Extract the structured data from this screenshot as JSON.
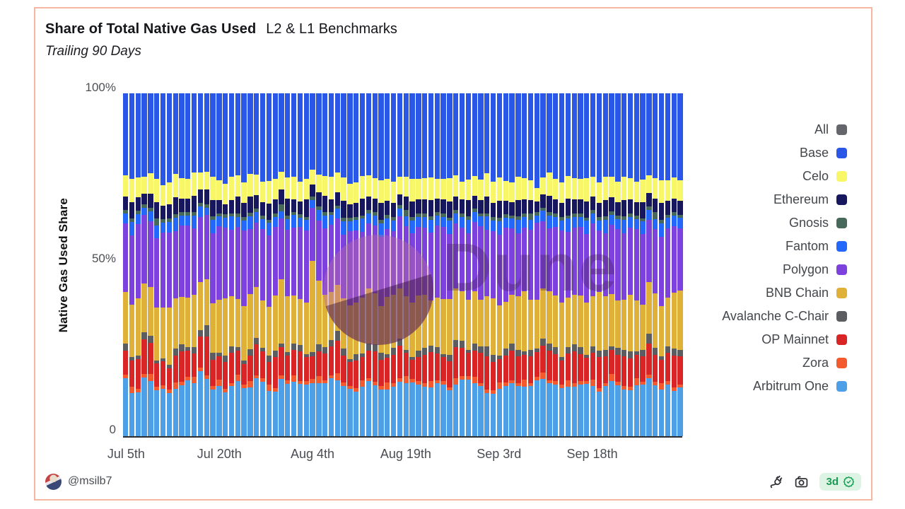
{
  "header": {
    "title_bold": "Share of Total Native Gas Used",
    "title_rest": "L2 & L1 Benchmarks",
    "subtitle": "Trailing 90 Days"
  },
  "watermark": {
    "text": "Dune"
  },
  "legend": {
    "items": [
      {
        "label": "All",
        "color": "#64666b"
      },
      {
        "label": "Base",
        "color": "#2b57e8"
      },
      {
        "label": "Celo",
        "color": "#f8f767"
      },
      {
        "label": "Ethereum",
        "color": "#17175f"
      },
      {
        "label": "Gnosis",
        "color": "#47695a"
      },
      {
        "label": "Fantom",
        "color": "#2368fa"
      },
      {
        "label": "Polygon",
        "color": "#7d42dd"
      },
      {
        "label": "BNB Chain",
        "color": "#e0b138"
      },
      {
        "label": "Avalanche C-Chair",
        "color": "#5b5d60"
      },
      {
        "label": "OP Mainnet",
        "color": "#d92525"
      },
      {
        "label": "Zora",
        "color": "#f35b2e"
      },
      {
        "label": "Arbitrum One",
        "color": "#4da0e8"
      }
    ]
  },
  "chart_data": {
    "type": "bar",
    "stacked": true,
    "normalized_to_100_percent": true,
    "title": "Share of Total Native Gas Used — L2 & L1 Benchmarks",
    "subtitle": "Trailing 90 Days",
    "ylabel": "Native Gas Used Share",
    "xlabel": "",
    "ylim": [
      0,
      100
    ],
    "grid": false,
    "legend_position": "right",
    "y_ticks": [
      "100%",
      "50%",
      "0"
    ],
    "num_bars": 90,
    "x_tick_positions": [
      0,
      15,
      30,
      45,
      60,
      75
    ],
    "x_tick_labels": [
      "Jul 5th",
      "Jul 20th",
      "Aug 4th",
      "Aug 19th",
      "Sep 3rd",
      "Sep 18th"
    ],
    "stack_order": "bottom to top as listed in series[]; values are approximate daily % shares",
    "series": [
      {
        "name": "Arbitrum One",
        "color": "#4da0e8",
        "values": [
          17,
          13,
          13,
          17,
          16,
          14,
          14,
          12,
          14,
          15,
          17,
          16,
          19,
          16,
          14,
          15,
          13,
          15,
          16,
          14,
          15,
          17,
          16,
          14,
          13,
          16,
          15,
          17,
          16,
          15,
          14,
          15,
          16,
          18,
          17,
          15,
          14,
          13,
          15,
          16,
          15,
          14,
          13,
          14,
          15,
          16,
          17,
          15,
          14,
          15,
          16,
          15,
          14,
          15,
          16,
          17,
          16,
          15,
          13,
          12,
          14,
          15,
          16,
          15,
          14,
          15,
          16,
          17,
          16,
          15,
          14,
          15,
          14,
          15,
          16,
          15,
          13,
          15,
          16,
          15,
          14,
          13,
          15,
          16,
          17,
          15,
          14,
          15,
          13,
          14
        ]
      },
      {
        "name": "Zora",
        "color": "#f35b2e",
        "values": [
          1,
          2,
          1,
          1,
          2,
          1,
          1,
          1,
          2,
          1,
          1,
          2,
          1,
          1,
          1,
          2,
          1,
          1,
          2,
          1,
          2,
          1,
          1,
          2,
          1,
          1,
          1,
          2,
          1,
          1,
          1,
          2,
          1,
          1,
          2,
          1,
          1,
          1,
          2,
          1,
          1,
          1,
          2,
          1,
          1,
          2,
          1,
          1,
          1,
          2,
          1,
          1,
          1,
          2,
          1,
          1,
          2,
          1,
          1,
          1,
          2,
          1,
          1,
          1,
          2,
          1,
          1,
          2,
          1,
          1,
          1,
          2,
          1,
          1,
          1,
          2,
          1,
          1,
          2,
          1,
          1,
          1,
          2,
          1,
          1,
          1,
          2,
          1,
          1,
          1
        ]
      },
      {
        "name": "OP Mainnet",
        "color": "#d92525",
        "values": [
          7,
          8,
          9,
          10,
          9,
          7,
          7,
          6,
          8,
          9,
          8,
          7,
          9,
          11,
          8,
          7,
          8,
          9,
          7,
          6,
          8,
          9,
          8,
          7,
          9,
          8,
          7,
          8,
          9,
          7,
          6,
          7,
          8,
          9,
          10,
          8,
          7,
          8,
          7,
          8,
          9,
          8,
          7,
          8,
          9,
          7,
          6,
          7,
          8,
          9,
          8,
          7,
          8,
          9,
          8,
          7,
          8,
          9,
          10,
          8,
          7,
          8,
          9,
          8,
          7,
          8,
          7,
          8,
          9,
          8,
          7,
          8,
          9,
          8,
          7,
          8,
          9,
          8,
          7,
          8,
          9,
          8,
          7,
          8,
          9,
          8,
          7,
          8,
          9,
          8
        ]
      },
      {
        "name": "Avalanche C-Chair",
        "color": "#5b5d60",
        "values": [
          2,
          1,
          1,
          2,
          2,
          1,
          1,
          1,
          2,
          2,
          1,
          2,
          2,
          3,
          2,
          1,
          2,
          2,
          1,
          1,
          2,
          2,
          1,
          2,
          2,
          1,
          1,
          2,
          2,
          1,
          1,
          2,
          2,
          2,
          3,
          2,
          1,
          2,
          1,
          2,
          2,
          2,
          1,
          2,
          2,
          1,
          1,
          2,
          2,
          2,
          2,
          1,
          2,
          2,
          2,
          1,
          2,
          2,
          3,
          2,
          1,
          2,
          2,
          2,
          1,
          2,
          1,
          2,
          2,
          2,
          1,
          2,
          2,
          2,
          1,
          2,
          2,
          2,
          1,
          2,
          2,
          2,
          1,
          2,
          3,
          2,
          1,
          2,
          2,
          2
        ]
      },
      {
        "name": "BNB Chain",
        "color": "#e0b138",
        "values": [
          15,
          16,
          17,
          14,
          14,
          16,
          15,
          16,
          15,
          14,
          15,
          16,
          14,
          13,
          15,
          16,
          17,
          15,
          14,
          16,
          17,
          15,
          14,
          15,
          16,
          18,
          16,
          15,
          14,
          15,
          24,
          18,
          16,
          15,
          14,
          15,
          16,
          15,
          17,
          16,
          15,
          14,
          16,
          15,
          14,
          16,
          17,
          16,
          15,
          14,
          15,
          16,
          17,
          15,
          14,
          15,
          16,
          14,
          15,
          16,
          15,
          14,
          15,
          16,
          17,
          15,
          14,
          15,
          16,
          15,
          16,
          15,
          14,
          15,
          16,
          15,
          17,
          16,
          15,
          14,
          15,
          16,
          15,
          14,
          15,
          16,
          15,
          14,
          16,
          17
        ]
      },
      {
        "name": "Polygon",
        "color": "#7d42dd",
        "values": [
          20,
          21,
          22,
          20,
          19,
          21,
          22,
          21,
          20,
          21,
          22,
          20,
          19,
          18,
          21,
          22,
          21,
          20,
          21,
          22,
          20,
          19,
          21,
          22,
          20,
          17,
          19,
          21,
          22,
          21,
          14,
          17,
          20,
          21,
          20,
          19,
          22,
          21,
          20,
          19,
          20,
          21,
          19,
          18,
          20,
          21,
          22,
          20,
          19,
          21,
          22,
          21,
          20,
          19,
          18,
          20,
          21,
          22,
          20,
          19,
          21,
          22,
          20,
          19,
          18,
          21,
          22,
          20,
          19,
          20,
          21,
          20,
          19,
          20,
          21,
          22,
          18,
          19,
          20,
          21,
          20,
          19,
          21,
          22,
          18,
          19,
          21,
          20,
          19,
          18
        ]
      },
      {
        "name": "Fantom",
        "color": "#2368fa",
        "values": [
          3,
          4,
          3,
          2,
          3,
          4,
          3,
          3,
          4,
          3,
          3,
          4,
          3,
          2,
          4,
          3,
          3,
          4,
          3,
          3,
          4,
          3,
          3,
          4,
          3,
          2,
          3,
          4,
          3,
          3,
          2,
          3,
          4,
          3,
          3,
          4,
          3,
          3,
          4,
          3,
          3,
          4,
          3,
          3,
          2,
          3,
          4,
          3,
          3,
          4,
          3,
          3,
          4,
          3,
          3,
          4,
          3,
          3,
          4,
          3,
          4,
          3,
          3,
          4,
          3,
          3,
          2,
          3,
          4,
          3,
          3,
          4,
          3,
          3,
          4,
          3,
          3,
          4,
          3,
          3,
          4,
          3,
          3,
          4,
          3,
          3,
          4,
          3,
          3,
          3
        ]
      },
      {
        "name": "Gnosis",
        "color": "#47695a",
        "values": [
          1,
          1,
          1,
          1,
          1,
          2,
          1,
          1,
          1,
          1,
          1,
          1,
          1,
          1,
          1,
          1,
          1,
          1,
          1,
          1,
          1,
          1,
          1,
          1,
          1,
          2,
          1,
          1,
          1,
          1,
          1,
          1,
          1,
          1,
          1,
          1,
          1,
          1,
          1,
          1,
          1,
          1,
          1,
          1,
          1,
          2,
          1,
          1,
          1,
          1,
          1,
          1,
          1,
          1,
          1,
          1,
          1,
          1,
          1,
          1,
          1,
          1,
          1,
          1,
          1,
          2,
          1,
          1,
          1,
          1,
          1,
          1,
          1,
          1,
          1,
          1,
          1,
          1,
          1,
          1,
          1,
          1,
          1,
          1,
          1,
          2,
          1,
          1,
          1,
          1
        ]
      },
      {
        "name": "Ethereum",
        "color": "#17175f",
        "values": [
          4,
          5,
          4,
          3,
          4,
          5,
          4,
          4,
          5,
          4,
          4,
          5,
          4,
          4,
          5,
          4,
          3,
          4,
          5,
          4,
          5,
          4,
          4,
          5,
          4,
          4,
          5,
          4,
          4,
          5,
          3,
          4,
          5,
          4,
          4,
          5,
          4,
          4,
          5,
          4,
          4,
          5,
          4,
          4,
          3,
          4,
          5,
          4,
          4,
          5,
          4,
          4,
          5,
          4,
          4,
          5,
          4,
          4,
          5,
          4,
          5,
          4,
          4,
          5,
          4,
          4,
          3,
          4,
          5,
          4,
          4,
          5,
          4,
          4,
          5,
          4,
          4,
          5,
          4,
          4,
          5,
          4,
          4,
          5,
          4,
          4,
          5,
          4,
          4,
          4
        ]
      },
      {
        "name": "Celo",
        "color": "#f8f767",
        "values": [
          6,
          7,
          6,
          5,
          6,
          7,
          6,
          6,
          7,
          6,
          6,
          7,
          5,
          5,
          7,
          6,
          6,
          7,
          6,
          6,
          7,
          6,
          6,
          7,
          6,
          5,
          6,
          7,
          6,
          6,
          4,
          5,
          6,
          7,
          6,
          7,
          6,
          6,
          7,
          6,
          6,
          7,
          6,
          6,
          5,
          6,
          7,
          6,
          6,
          7,
          6,
          6,
          7,
          6,
          5,
          6,
          6,
          6,
          7,
          6,
          7,
          6,
          6,
          7,
          6,
          6,
          4,
          5,
          7,
          6,
          6,
          7,
          6,
          6,
          7,
          6,
          6,
          7,
          6,
          6,
          7,
          6,
          6,
          7,
          5,
          6,
          7,
          6,
          6,
          6
        ]
      },
      {
        "name": "Base",
        "color": "#2b57e8",
        "values": [
          24,
          26,
          25,
          24,
          23,
          26,
          27,
          25,
          24,
          25,
          26,
          24,
          23,
          22,
          25,
          26,
          27,
          25,
          24,
          26,
          25,
          24,
          26,
          27,
          25,
          22,
          24,
          26,
          27,
          25,
          20,
          23,
          25,
          26,
          24,
          25,
          27,
          26,
          25,
          24,
          25,
          26,
          24,
          25,
          23,
          25,
          27,
          25,
          24,
          26,
          26,
          25,
          26,
          24,
          25,
          26,
          25,
          26,
          24,
          25,
          25,
          26,
          27,
          25,
          24,
          26,
          27,
          25,
          24,
          25,
          26,
          25,
          24,
          25,
          26,
          25,
          26,
          25,
          24,
          26,
          25,
          24,
          26,
          27,
          24,
          25,
          26,
          25,
          24,
          25
        ]
      }
    ]
  },
  "footer": {
    "author": "@msilb7",
    "badge_text": "3d",
    "icons": [
      "plug",
      "camera",
      "verified-seal"
    ]
  }
}
